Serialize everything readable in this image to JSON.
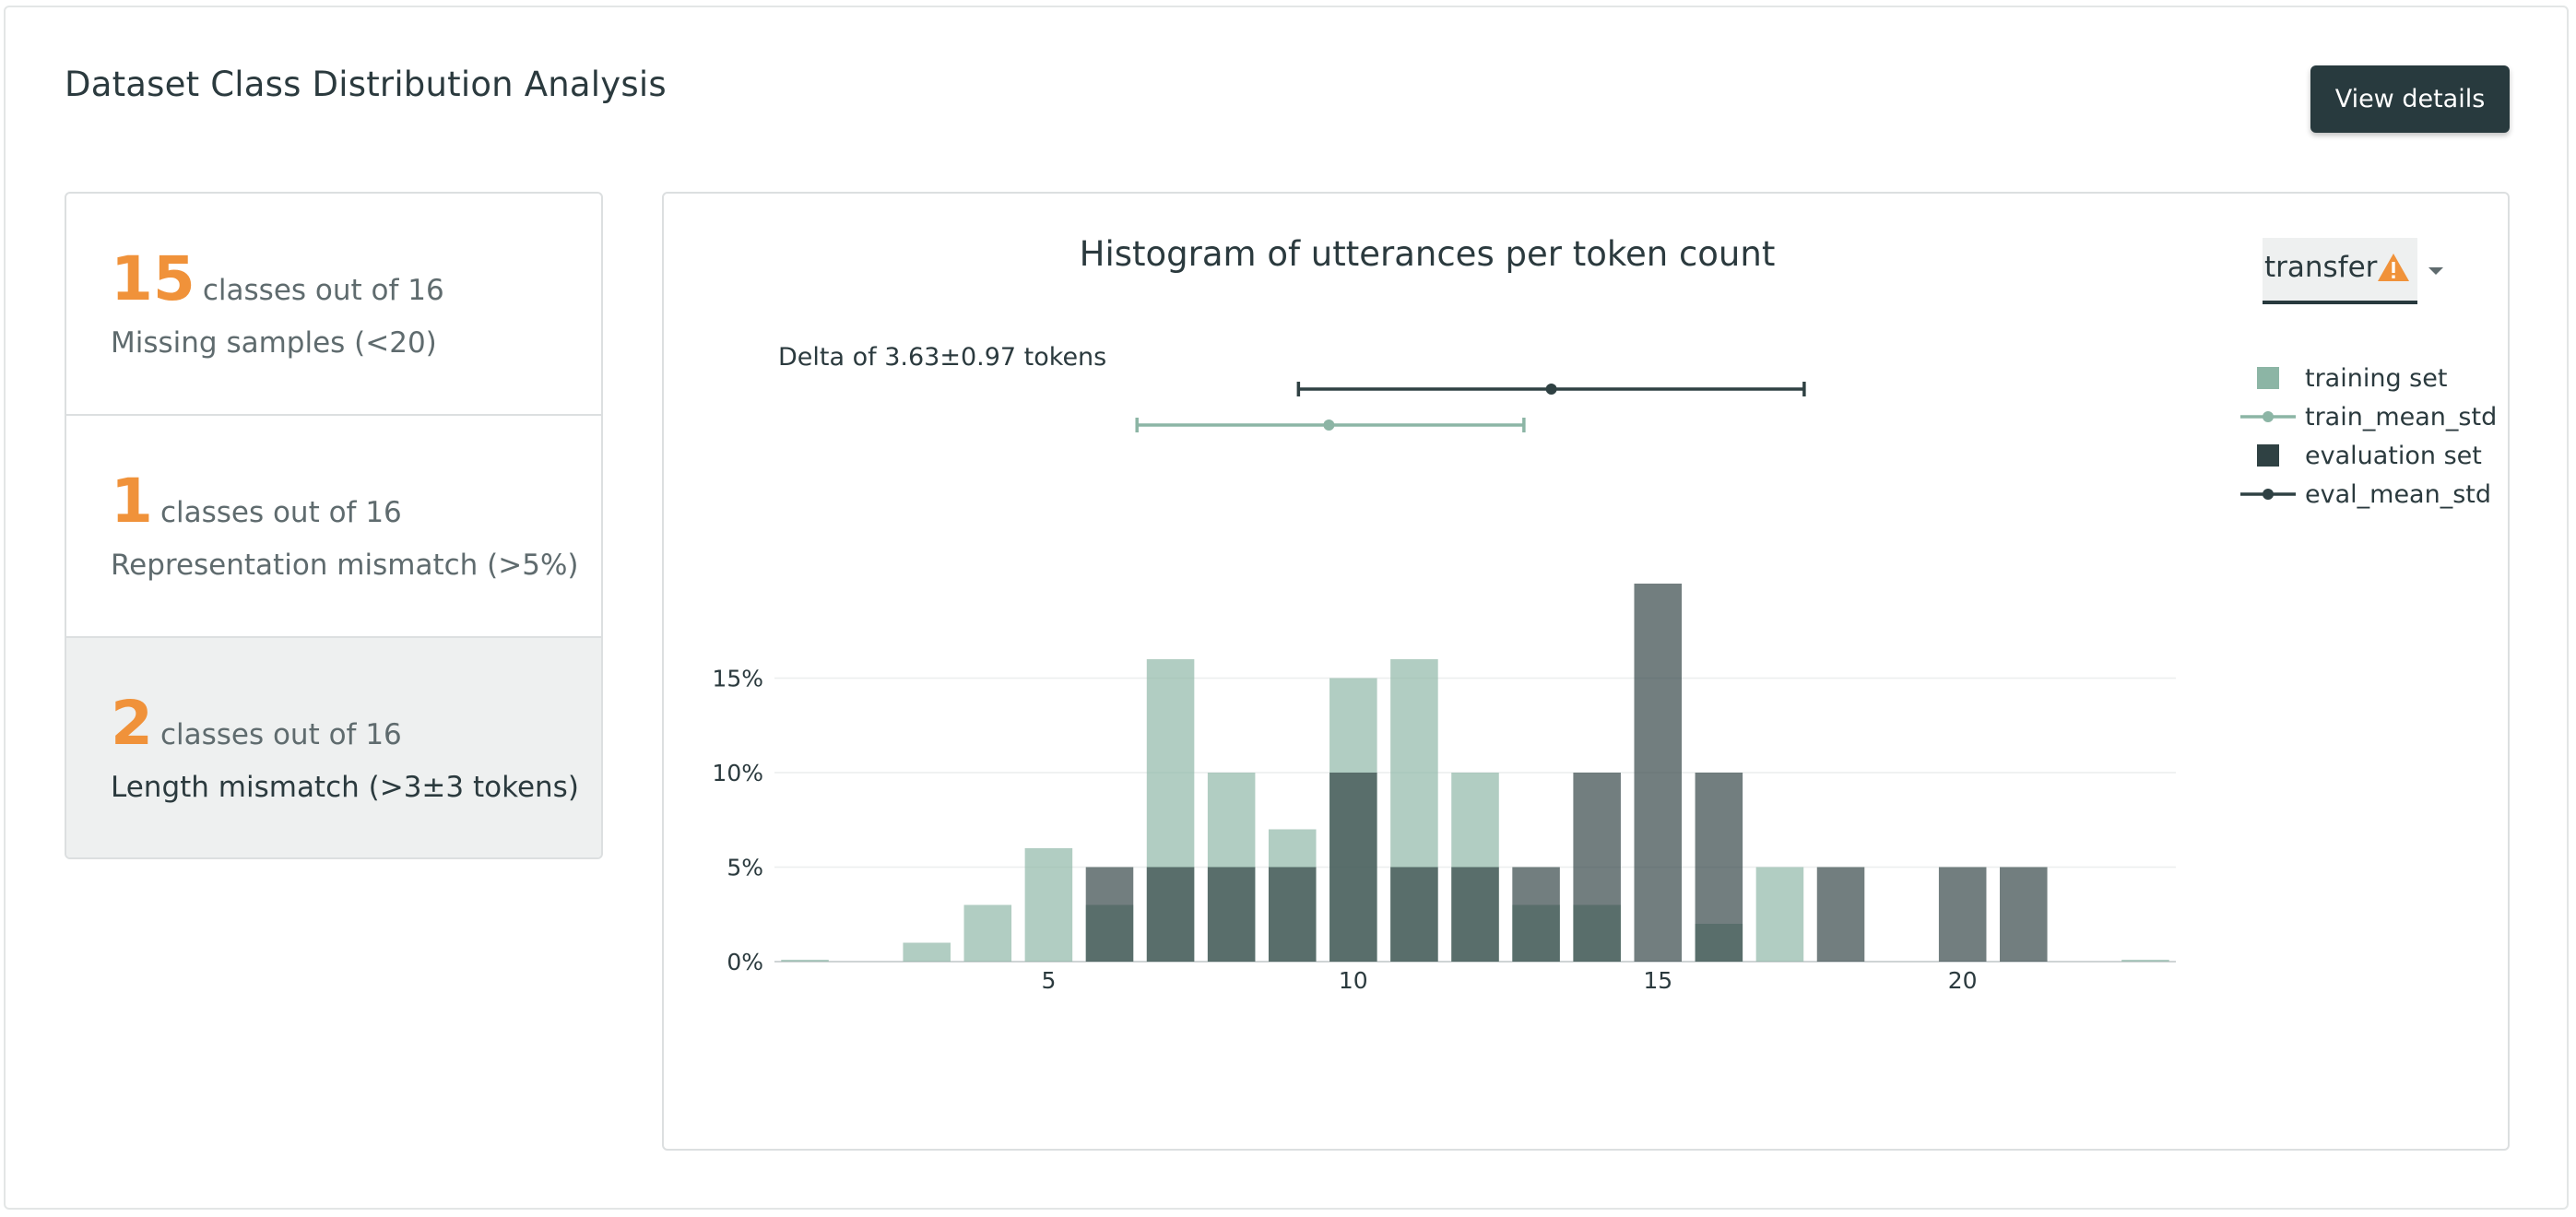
{
  "page": {
    "title": "Dataset Class Distribution Analysis",
    "view_details_label": "View details"
  },
  "summary_cards": [
    {
      "count": "15",
      "of_text": "classes out of 16",
      "label": "Missing samples (<20)",
      "selected": false
    },
    {
      "count": "1",
      "of_text": "classes out of 16",
      "label": "Representation mismatch (>5%)",
      "selected": false
    },
    {
      "count": "2",
      "of_text": "classes out of 16",
      "label": "Length mismatch (>3±3 tokens)",
      "selected": true
    }
  ],
  "class_selector": {
    "value": "transfer",
    "warning_icon": "warning-triangle-icon",
    "caret_icon": "caret-down-icon"
  },
  "colors": {
    "accent": "#f0923a",
    "training": "#8cb5a5",
    "evaluation": "#2f4143",
    "button_bg": "#283a3e"
  },
  "chart_data": {
    "type": "bar",
    "title": "Histogram of utterances per token count",
    "annotation": "Delta of 3.63±0.97 tokens",
    "x_ticks": [
      5,
      10,
      15,
      20
    ],
    "y_ticks": [
      "0%",
      "5%",
      "10%",
      "15%"
    ],
    "xlim": [
      0.5,
      23.5
    ],
    "ylim": [
      0,
      20
    ],
    "grid": true,
    "legend_position": "top-right",
    "legend": [
      "training set",
      "train_mean_std",
      "evaluation set",
      "eval_mean_std"
    ],
    "series": [
      {
        "name": "training set",
        "x": [
          1,
          3,
          4,
          5,
          6,
          7,
          8,
          9,
          10,
          11,
          12,
          13,
          14,
          16,
          17,
          23
        ],
        "values": [
          0.1,
          1,
          3,
          6,
          3,
          16,
          10,
          7,
          15,
          16,
          10,
          3,
          3,
          2,
          5,
          0.1
        ]
      },
      {
        "name": "evaluation set",
        "x": [
          6,
          7,
          8,
          9,
          10,
          11,
          12,
          13,
          14,
          15,
          16,
          18,
          20,
          21
        ],
        "values": [
          5,
          5,
          5,
          5,
          10,
          5,
          5,
          5,
          10,
          20,
          10,
          5,
          5,
          5
        ]
      }
    ],
    "error_bars": [
      {
        "name": "train_mean_std",
        "mean": 9.6,
        "low": 6.45,
        "high": 12.8
      },
      {
        "name": "eval_mean_std",
        "mean": 13.25,
        "low": 9.1,
        "high": 17.4
      }
    ]
  }
}
